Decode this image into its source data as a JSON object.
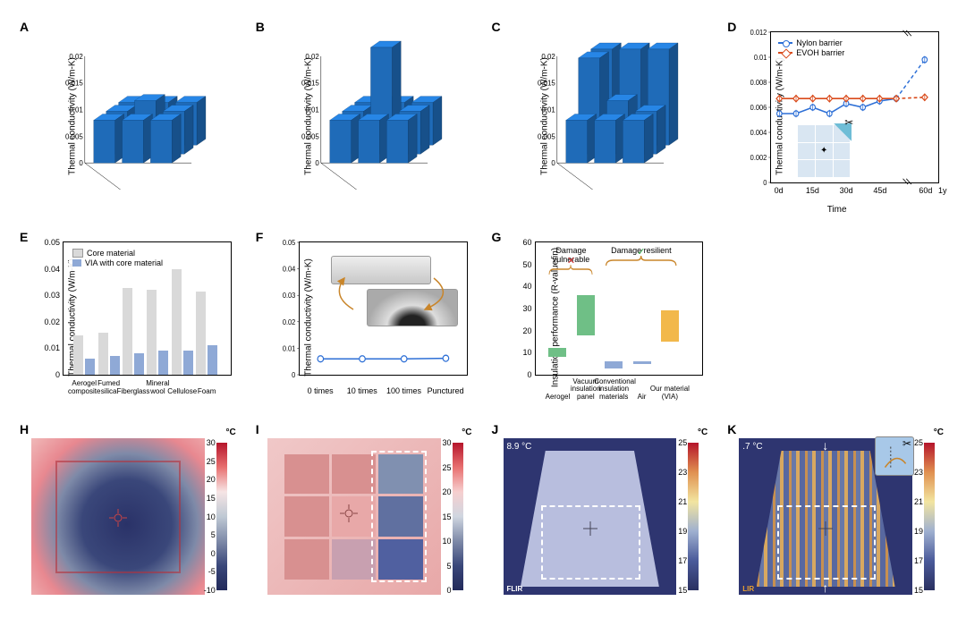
{
  "panels": {
    "A": {
      "label": "A",
      "ylabel": "Thermal conductivity (W/m-K)",
      "yticks": [
        "0",
        "0.005",
        "0.01",
        "0.015",
        "0.02"
      ],
      "grid": [
        [
          0.008,
          0.008,
          0.008
        ],
        [
          0.008,
          0.01,
          0.008
        ],
        [
          0.008,
          0.008,
          0.008
        ]
      ],
      "ymax": 0.02,
      "bar_color": "#1f6bb8",
      "axis_color": "#000000",
      "background": "#ffffff"
    },
    "B": {
      "label": "B",
      "ylabel": "Thermal conductivity (W/m-K)",
      "yticks": [
        "0",
        "0.005",
        "0.01",
        "0.015",
        "0.02"
      ],
      "grid": [
        [
          0.008,
          0.008,
          0.008
        ],
        [
          0.008,
          0.02,
          0.008
        ],
        [
          0.008,
          0.008,
          0.008
        ]
      ],
      "ymax": 0.02,
      "bar_color": "#1f6bb8"
    },
    "C": {
      "label": "C",
      "ylabel": "Thermal conductivity (W/m-K)",
      "yticks": [
        "0",
        "0.005",
        "0.01",
        "0.015",
        "0.02"
      ],
      "grid": [
        [
          0.018,
          0.018,
          0.018
        ],
        [
          0.018,
          0.01,
          0.008
        ],
        [
          0.008,
          0.008,
          0.008
        ]
      ],
      "ymax": 0.02,
      "bar_color": "#1f6bb8"
    },
    "D": {
      "label": "D",
      "ylabel": "Thermal conductivity (W/m-K)",
      "xlabel": "Time",
      "yticks": [
        "0",
        "0.002",
        "0.004",
        "0.006",
        "0.008",
        "0.01",
        "0.012"
      ],
      "xticks": [
        "0d",
        "15d",
        "30d",
        "45d",
        "60d",
        "1y"
      ],
      "ymax": 0.012,
      "series": [
        {
          "name": "Nylon barrier",
          "color": "#2d6fd6",
          "marker": "circle",
          "x": [
            0,
            1,
            2,
            3,
            4,
            5,
            6,
            7,
            8
          ],
          "y": [
            0.0055,
            0.0055,
            0.006,
            0.0055,
            0.0063,
            0.006,
            0.0065,
            0.0067,
            0.0098
          ],
          "dash_after": 7
        },
        {
          "name": "EVOH barrier",
          "color": "#d94a1a",
          "marker": "diamond",
          "x": [
            0,
            1,
            2,
            3,
            4,
            5,
            6,
            7,
            8
          ],
          "y": [
            0.0067,
            0.0067,
            0.0067,
            0.0067,
            0.0067,
            0.0067,
            0.0067,
            0.0067,
            0.0068
          ],
          "dash_after": 7
        }
      ],
      "inset": {
        "bg": "#d9e6f2",
        "highlight": "#6fbdd6",
        "note": "cut corner"
      }
    },
    "E": {
      "label": "E",
      "ylabel": "Thermal conductivity (W/m-K)",
      "yticks": [
        "0",
        "0.01",
        "0.02",
        "0.03",
        "0.04",
        "0.05"
      ],
      "ymax": 0.05,
      "categories": [
        "Aerogel composite",
        "Fumed silica",
        "Fiberglass",
        "Mineral wool",
        "Cellulose",
        "Foam"
      ],
      "series": [
        {
          "name": "Core material",
          "color": "#d9d9d9",
          "values": [
            0.0148,
            0.016,
            0.0328,
            0.0322,
            0.04,
            0.0315
          ]
        },
        {
          "name": "VIA with core material",
          "color": "#8fa9d6",
          "values": [
            0.006,
            0.0072,
            0.008,
            0.0092,
            0.0092,
            0.011
          ]
        }
      ]
    },
    "F": {
      "label": "F",
      "ylabel": "Thermal conductivity (W/m-K)",
      "yticks": [
        "0",
        "0.01",
        "0.02",
        "0.03",
        "0.04",
        "0.05"
      ],
      "ymax": 0.05,
      "xticks": [
        "0 times",
        "10 times",
        "100 times",
        "Punctured"
      ],
      "series": [
        {
          "color": "#2d6fd6",
          "marker": "circle",
          "values": [
            0.006,
            0.006,
            0.006,
            0.0062
          ]
        }
      ],
      "insets": [
        "flat sample",
        "bent sample"
      ]
    },
    "G": {
      "label": "G",
      "ylabel": "Insulation performance (R-value/in)",
      "yticks": [
        "0",
        "10",
        "20",
        "30",
        "40",
        "50",
        "60"
      ],
      "ymax": 60,
      "categories": [
        "Aerogel",
        "Vacuum insulation panel",
        "Conventional insulation materials",
        "Air",
        "Our material (VIA)"
      ],
      "ranges": [
        {
          "lo": 8,
          "hi": 12,
          "color": "#6fbf86"
        },
        {
          "lo": 18,
          "hi": 36,
          "color": "#6fbf86"
        },
        {
          "lo": 3,
          "hi": 6,
          "color": "#8fa9d6"
        },
        {
          "lo": 5,
          "hi": 6,
          "color": "#8fa9d6"
        },
        {
          "lo": 15,
          "hi": 29,
          "color": "#f2b84b"
        }
      ],
      "groups": [
        {
          "label": "Damage vulnerable",
          "span": [
            0,
            1
          ],
          "mark": "✕",
          "mark_color": "#d03030"
        },
        {
          "label": "Damage resilient",
          "span": [
            2,
            4
          ],
          "mark": "✓",
          "mark_color": "#2a9e3f"
        }
      ]
    },
    "H": {
      "label": "H",
      "cb_unit": "°C",
      "cb_ticks": [
        "30",
        "25",
        "20",
        "15",
        "10",
        "5",
        "0",
        "-5",
        "-10"
      ],
      "gradient": [
        "#b5152b",
        "#e87070",
        "#f6e5e5",
        "#bfc9d4",
        "#7e8aa8",
        "#3a477a",
        "#222a5a"
      ],
      "center_temp_color": "#2a3268",
      "edge_color": "#e88890"
    },
    "I": {
      "label": "I",
      "cb_unit": "°C",
      "cb_ticks": [
        "30",
        "25",
        "20",
        "15",
        "10",
        "5",
        "0"
      ],
      "gradient": [
        "#b5152b",
        "#e87070",
        "#f6cfcf",
        "#d0d6e0",
        "#7e8aa8",
        "#3a477a",
        "#222a5a"
      ],
      "center_temp_color": "#d88a8a",
      "grid_overlay": "#b8c0d0"
    },
    "J": {
      "label": "J",
      "cb_unit": "°C",
      "cb_ticks": [
        "25",
        "23",
        "21",
        "19",
        "17",
        "15"
      ],
      "gradient": [
        "#b5152b",
        "#e09050",
        "#f2e5a0",
        "#9fb0d0",
        "#4a5a9a",
        "#2a3060"
      ],
      "overlay_text": "8.9 °C",
      "shape_color": "#b8bede",
      "bg_color": "#2e3570"
    },
    "K": {
      "label": "K",
      "cb_unit": "°C",
      "cb_ticks": [
        "25",
        "23",
        "21",
        "19",
        "17",
        "15"
      ],
      "gradient": [
        "#b5152b",
        "#e09050",
        "#f2e5a0",
        "#9fb0d0",
        "#4a5a9a",
        "#2a3060"
      ],
      "overlay_text": ".7 °C",
      "bg_color": "#2e3570",
      "inset_bg": "#a8c8e8"
    }
  }
}
